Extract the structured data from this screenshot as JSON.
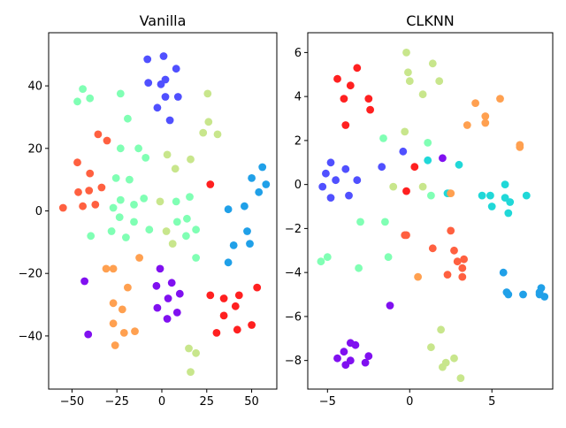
{
  "chart_data": [
    {
      "type": "scatter",
      "title": "Vanilla",
      "xlim": [
        -63,
        64
      ],
      "ylim": [
        -57,
        57
      ],
      "xticks": [
        -50,
        -25,
        0,
        25,
        50
      ],
      "yticks": [
        -40,
        -20,
        0,
        20,
        40
      ],
      "xlabel": "",
      "ylabel": "",
      "grid": false,
      "points": [
        {
          "x": -8,
          "y": 48.5,
          "c": "#5050ff"
        },
        {
          "x": 1,
          "y": 49.5,
          "c": "#5050ff"
        },
        {
          "x": 8,
          "y": 45.5,
          "c": "#5050ff"
        },
        {
          "x": 2,
          "y": 42,
          "c": "#5050ff"
        },
        {
          "x": -7.5,
          "y": 41,
          "c": "#5050ff"
        },
        {
          "x": -0.5,
          "y": 40.5,
          "c": "#5050ff"
        },
        {
          "x": 2,
          "y": 36.5,
          "c": "#5050ff"
        },
        {
          "x": 9,
          "y": 36.5,
          "c": "#5050ff"
        },
        {
          "x": -2.5,
          "y": 33,
          "c": "#5050ff"
        },
        {
          "x": 4.5,
          "y": 29,
          "c": "#5050ff"
        },
        {
          "x": -44,
          "y": 39,
          "c": "#80ffb4"
        },
        {
          "x": -47,
          "y": 35,
          "c": "#80ffb4"
        },
        {
          "x": -40,
          "y": 36,
          "c": "#80ffb4"
        },
        {
          "x": -23,
          "y": 37.5,
          "c": "#80ffb4"
        },
        {
          "x": -19,
          "y": 29.5,
          "c": "#80ffb4"
        },
        {
          "x": -23,
          "y": 20,
          "c": "#80ffb4"
        },
        {
          "x": -13,
          "y": 20,
          "c": "#80ffb4"
        },
        {
          "x": -9,
          "y": 17,
          "c": "#80ffb4"
        },
        {
          "x": -25.5,
          "y": 10.5,
          "c": "#80ffb4"
        },
        {
          "x": -18,
          "y": 10,
          "c": "#80ffb4"
        },
        {
          "x": -10,
          "y": 4,
          "c": "#80ffb4"
        },
        {
          "x": -23,
          "y": 3.5,
          "c": "#80ffb4"
        },
        {
          "x": -15.5,
          "y": 2,
          "c": "#80ffb4"
        },
        {
          "x": -27,
          "y": 1,
          "c": "#80ffb4"
        },
        {
          "x": -23.5,
          "y": -2,
          "c": "#80ffb4"
        },
        {
          "x": -15.5,
          "y": -3.5,
          "c": "#80ffb4"
        },
        {
          "x": -7,
          "y": -6,
          "c": "#80ffb4"
        },
        {
          "x": -28,
          "y": -6.5,
          "c": "#80ffb4"
        },
        {
          "x": -39.5,
          "y": -8,
          "c": "#80ffb4"
        },
        {
          "x": -20,
          "y": -8.5,
          "c": "#80ffb4"
        },
        {
          "x": 8.5,
          "y": -3.5,
          "c": "#80ffb4"
        },
        {
          "x": 14,
          "y": -2.5,
          "c": "#80ffb4"
        },
        {
          "x": 19,
          "y": -6,
          "c": "#80ffb4"
        },
        {
          "x": 8,
          "y": 3,
          "c": "#80ffb4"
        },
        {
          "x": 15.5,
          "y": 4.5,
          "c": "#80ffb4"
        },
        {
          "x": 13.5,
          "y": -8,
          "c": "#80ffb4"
        },
        {
          "x": 19,
          "y": -15,
          "c": "#80ffb4"
        },
        {
          "x": 25.5,
          "y": 37.5,
          "c": "#c8e68c"
        },
        {
          "x": 26,
          "y": 28.5,
          "c": "#c8e68c"
        },
        {
          "x": 23,
          "y": 25,
          "c": "#c8e68c"
        },
        {
          "x": 31,
          "y": 24.5,
          "c": "#c8e68c"
        },
        {
          "x": 3,
          "y": 18,
          "c": "#c8e68c"
        },
        {
          "x": 16,
          "y": 16.5,
          "c": "#c8e68c"
        },
        {
          "x": 7.5,
          "y": 13.5,
          "c": "#c8e68c"
        },
        {
          "x": -1,
          "y": 3,
          "c": "#c8e68c"
        },
        {
          "x": 2.5,
          "y": -6.5,
          "c": "#c8e68c"
        },
        {
          "x": 6,
          "y": -10.5,
          "c": "#c8e68c"
        },
        {
          "x": 15,
          "y": -44,
          "c": "#c8e68c"
        },
        {
          "x": 19,
          "y": -45.5,
          "c": "#c8e68c"
        },
        {
          "x": 16,
          "y": -51.5,
          "c": "#c8e68c"
        },
        {
          "x": 27,
          "y": 8.5,
          "c": "#ff2020"
        },
        {
          "x": 27,
          "y": -27,
          "c": "#ff2020"
        },
        {
          "x": 34.5,
          "y": -28,
          "c": "#ff2020"
        },
        {
          "x": 43,
          "y": -27,
          "c": "#ff2020"
        },
        {
          "x": 53,
          "y": -24.5,
          "c": "#ff2020"
        },
        {
          "x": 41,
          "y": -30.5,
          "c": "#ff2020"
        },
        {
          "x": 34.5,
          "y": -33.5,
          "c": "#ff2020"
        },
        {
          "x": 50,
          "y": -36.5,
          "c": "#ff2020"
        },
        {
          "x": 42,
          "y": -38,
          "c": "#ff2020"
        },
        {
          "x": 30.5,
          "y": -39,
          "c": "#ff2020"
        },
        {
          "x": -47,
          "y": 15.5,
          "c": "#ff6040"
        },
        {
          "x": -40,
          "y": 12,
          "c": "#ff6040"
        },
        {
          "x": -46.5,
          "y": 6,
          "c": "#ff6040"
        },
        {
          "x": -40.5,
          "y": 6.5,
          "c": "#ff6040"
        },
        {
          "x": -33.5,
          "y": 7.5,
          "c": "#ff6040"
        },
        {
          "x": -37,
          "y": 2,
          "c": "#ff6040"
        },
        {
          "x": -44,
          "y": 1.5,
          "c": "#ff6040"
        },
        {
          "x": -55,
          "y": 1,
          "c": "#ff6040"
        },
        {
          "x": -35.5,
          "y": 24.5,
          "c": "#ff6040"
        },
        {
          "x": -30.5,
          "y": 22.5,
          "c": "#ff6040"
        },
        {
          "x": -12.5,
          "y": -15,
          "c": "#ffa050"
        },
        {
          "x": -31,
          "y": -18.5,
          "c": "#ffa050"
        },
        {
          "x": -27,
          "y": -18.5,
          "c": "#ffa050"
        },
        {
          "x": -19,
          "y": -24.5,
          "c": "#ffa050"
        },
        {
          "x": -27,
          "y": -29.5,
          "c": "#ffa050"
        },
        {
          "x": -22,
          "y": -31.5,
          "c": "#ffa050"
        },
        {
          "x": -27,
          "y": -36,
          "c": "#ffa050"
        },
        {
          "x": -21,
          "y": -39,
          "c": "#ffa050"
        },
        {
          "x": -15,
          "y": -38.5,
          "c": "#ffa050"
        },
        {
          "x": -26,
          "y": -43,
          "c": "#ffa050"
        },
        {
          "x": -1,
          "y": -18.5,
          "c": "#8010f0"
        },
        {
          "x": -3,
          "y": -24,
          "c": "#8010f0"
        },
        {
          "x": 5.5,
          "y": -23,
          "c": "#8010f0"
        },
        {
          "x": 10,
          "y": -26.5,
          "c": "#8010f0"
        },
        {
          "x": 3.5,
          "y": -28,
          "c": "#8010f0"
        },
        {
          "x": -2.5,
          "y": -31,
          "c": "#8010f0"
        },
        {
          "x": 8.5,
          "y": -32.5,
          "c": "#8010f0"
        },
        {
          "x": 3,
          "y": -34.5,
          "c": "#8010f0"
        },
        {
          "x": -43,
          "y": -22.5,
          "c": "#8010f0"
        },
        {
          "x": -41,
          "y": -39.5,
          "c": "#8010f0"
        },
        {
          "x": 37,
          "y": 0.5,
          "c": "#20a0e8"
        },
        {
          "x": 46,
          "y": 1.5,
          "c": "#20a0e8"
        },
        {
          "x": 50,
          "y": 10.5,
          "c": "#20a0e8"
        },
        {
          "x": 56,
          "y": 14,
          "c": "#20a0e8"
        },
        {
          "x": 54,
          "y": 6,
          "c": "#20a0e8"
        },
        {
          "x": 58,
          "y": 8.5,
          "c": "#20a0e8"
        },
        {
          "x": 47.5,
          "y": -6.5,
          "c": "#20a0e8"
        },
        {
          "x": 40,
          "y": -11,
          "c": "#20a0e8"
        },
        {
          "x": 49,
          "y": -10.5,
          "c": "#20a0e8"
        },
        {
          "x": 37,
          "y": -16.5,
          "c": "#20a0e8"
        }
      ]
    },
    {
      "type": "scatter",
      "title": "CLKNN",
      "xlim": [
        -6.2,
        8.7
      ],
      "ylim": [
        -9.3,
        6.9
      ],
      "xticks": [
        -5,
        0,
        5
      ],
      "yticks": [
        -8,
        -6,
        -4,
        -2,
        0,
        2,
        4,
        6
      ],
      "xlabel": "",
      "ylabel": "",
      "grid": false,
      "points": [
        {
          "x": -4.8,
          "y": 1.0,
          "c": "#5050ff"
        },
        {
          "x": -5.1,
          "y": 0.5,
          "c": "#5050ff"
        },
        {
          "x": -4.5,
          "y": 0.2,
          "c": "#5050ff"
        },
        {
          "x": -5.3,
          "y": -0.1,
          "c": "#5050ff"
        },
        {
          "x": -4.8,
          "y": -0.6,
          "c": "#5050ff"
        },
        {
          "x": -3.9,
          "y": 0.7,
          "c": "#5050ff"
        },
        {
          "x": -3.2,
          "y": 0.2,
          "c": "#5050ff"
        },
        {
          "x": -3.7,
          "y": -0.5,
          "c": "#5050ff"
        },
        {
          "x": -1.7,
          "y": 0.8,
          "c": "#5050ff"
        },
        {
          "x": -0.4,
          "y": 1.5,
          "c": "#5050ff"
        },
        {
          "x": -3.2,
          "y": 5.3,
          "c": "#ff2020"
        },
        {
          "x": -4.4,
          "y": 4.8,
          "c": "#ff2020"
        },
        {
          "x": -3.6,
          "y": 4.5,
          "c": "#ff2020"
        },
        {
          "x": -4.0,
          "y": 3.9,
          "c": "#ff2020"
        },
        {
          "x": -2.5,
          "y": 3.9,
          "c": "#ff2020"
        },
        {
          "x": -2.4,
          "y": 3.4,
          "c": "#ff2020"
        },
        {
          "x": -3.9,
          "y": 2.7,
          "c": "#ff2020"
        },
        {
          "x": 0.3,
          "y": 0.8,
          "c": "#ff2020"
        },
        {
          "x": -0.2,
          "y": -0.3,
          "c": "#ff2020"
        },
        {
          "x": 2.0,
          "y": 1.2,
          "c": "#8010f0"
        },
        {
          "x": -1.2,
          "y": -5.5,
          "c": "#8010f0"
        },
        {
          "x": -3.6,
          "y": -7.2,
          "c": "#8010f0"
        },
        {
          "x": -3.3,
          "y": -7.3,
          "c": "#8010f0"
        },
        {
          "x": -4.0,
          "y": -7.6,
          "c": "#8010f0"
        },
        {
          "x": -4.4,
          "y": -7.9,
          "c": "#8010f0"
        },
        {
          "x": -3.6,
          "y": -8.0,
          "c": "#8010f0"
        },
        {
          "x": -3.9,
          "y": -8.2,
          "c": "#8010f0"
        },
        {
          "x": -2.7,
          "y": -8.1,
          "c": "#8010f0"
        },
        {
          "x": -2.5,
          "y": -7.8,
          "c": "#8010f0"
        },
        {
          "x": -0.2,
          "y": 6.0,
          "c": "#c8e68c"
        },
        {
          "x": 1.4,
          "y": 5.5,
          "c": "#c8e68c"
        },
        {
          "x": -0.1,
          "y": 5.1,
          "c": "#c8e68c"
        },
        {
          "x": 0.0,
          "y": 4.7,
          "c": "#c8e68c"
        },
        {
          "x": 1.8,
          "y": 4.7,
          "c": "#c8e68c"
        },
        {
          "x": 0.8,
          "y": 4.1,
          "c": "#c8e68c"
        },
        {
          "x": -0.3,
          "y": 2.4,
          "c": "#c8e68c"
        },
        {
          "x": -1.0,
          "y": -0.1,
          "c": "#c8e68c"
        },
        {
          "x": 0.8,
          "y": -0.1,
          "c": "#c8e68c"
        },
        {
          "x": 2.4,
          "y": -0.4,
          "c": "#c8e68c"
        },
        {
          "x": 1.9,
          "y": -6.6,
          "c": "#c8e68c"
        },
        {
          "x": 1.3,
          "y": -7.4,
          "c": "#c8e68c"
        },
        {
          "x": 2.2,
          "y": -8.1,
          "c": "#c8e68c"
        },
        {
          "x": 2.7,
          "y": -7.9,
          "c": "#c8e68c"
        },
        {
          "x": 2.0,
          "y": -8.3,
          "c": "#c8e68c"
        },
        {
          "x": 3.1,
          "y": -8.8,
          "c": "#c8e68c"
        },
        {
          "x": -1.6,
          "y": 2.1,
          "c": "#80ffb4"
        },
        {
          "x": 1.1,
          "y": 1.9,
          "c": "#80ffb4"
        },
        {
          "x": 1.3,
          "y": -0.5,
          "c": "#80ffb4"
        },
        {
          "x": -3.0,
          "y": -1.7,
          "c": "#80ffb4"
        },
        {
          "x": -1.5,
          "y": -1.7,
          "c": "#80ffb4"
        },
        {
          "x": -5.0,
          "y": -3.3,
          "c": "#80ffb4"
        },
        {
          "x": -5.4,
          "y": -3.5,
          "c": "#80ffb4"
        },
        {
          "x": -1.3,
          "y": -3.3,
          "c": "#80ffb4"
        },
        {
          "x": -3.1,
          "y": -3.8,
          "c": "#80ffb4"
        },
        {
          "x": 1.1,
          "y": 1.1,
          "c": "#20d8d8"
        },
        {
          "x": 3.0,
          "y": 0.9,
          "c": "#20d8d8"
        },
        {
          "x": 5.8,
          "y": 0.0,
          "c": "#20d8d8"
        },
        {
          "x": 4.4,
          "y": -0.5,
          "c": "#20d8d8"
        },
        {
          "x": 4.9,
          "y": -0.5,
          "c": "#20d8d8"
        },
        {
          "x": 5.8,
          "y": -0.6,
          "c": "#20d8d8"
        },
        {
          "x": 7.1,
          "y": -0.5,
          "c": "#20d8d8"
        },
        {
          "x": 6.1,
          "y": -0.8,
          "c": "#20d8d8"
        },
        {
          "x": 5.0,
          "y": -1.0,
          "c": "#20d8d8"
        },
        {
          "x": 6.0,
          "y": -1.3,
          "c": "#20d8d8"
        },
        {
          "x": 2.3,
          "y": -0.4,
          "c": "#20d8d8"
        },
        {
          "x": 5.5,
          "y": 3.9,
          "c": "#ffa050"
        },
        {
          "x": 4.0,
          "y": 3.7,
          "c": "#ffa050"
        },
        {
          "x": 4.6,
          "y": 3.1,
          "c": "#ffa050"
        },
        {
          "x": 4.6,
          "y": 2.8,
          "c": "#ffa050"
        },
        {
          "x": 3.5,
          "y": 2.7,
          "c": "#ffa050"
        },
        {
          "x": 6.7,
          "y": 1.8,
          "c": "#ffa050"
        },
        {
          "x": 6.7,
          "y": 1.7,
          "c": "#ffa050"
        },
        {
          "x": 2.5,
          "y": -0.4,
          "c": "#ffa050"
        },
        {
          "x": 0.5,
          "y": -4.2,
          "c": "#ffa050"
        },
        {
          "x": -0.3,
          "y": -2.3,
          "c": "#ff6040"
        },
        {
          "x": -0.2,
          "y": -2.3,
          "c": "#ff6040"
        },
        {
          "x": 2.5,
          "y": -2.1,
          "c": "#ff6040"
        },
        {
          "x": 1.4,
          "y": -2.9,
          "c": "#ff6040"
        },
        {
          "x": 2.7,
          "y": -3.0,
          "c": "#ff6040"
        },
        {
          "x": 3.3,
          "y": -3.4,
          "c": "#ff6040"
        },
        {
          "x": 2.9,
          "y": -3.5,
          "c": "#ff6040"
        },
        {
          "x": 3.2,
          "y": -3.8,
          "c": "#ff6040"
        },
        {
          "x": 2.3,
          "y": -4.1,
          "c": "#ff6040"
        },
        {
          "x": 3.2,
          "y": -4.2,
          "c": "#ff6040"
        },
        {
          "x": 5.7,
          "y": -4.0,
          "c": "#20a0e8"
        },
        {
          "x": 8.0,
          "y": -4.7,
          "c": "#20a0e8"
        },
        {
          "x": 5.9,
          "y": -4.9,
          "c": "#20a0e8"
        },
        {
          "x": 6.0,
          "y": -5.0,
          "c": "#20a0e8"
        },
        {
          "x": 6.9,
          "y": -5.0,
          "c": "#20a0e8"
        },
        {
          "x": 7.9,
          "y": -5.0,
          "c": "#20a0e8"
        },
        {
          "x": 8.2,
          "y": -5.1,
          "c": "#20a0e8"
        },
        {
          "x": 7.9,
          "y": -4.9,
          "c": "#20a0e8"
        }
      ]
    }
  ]
}
